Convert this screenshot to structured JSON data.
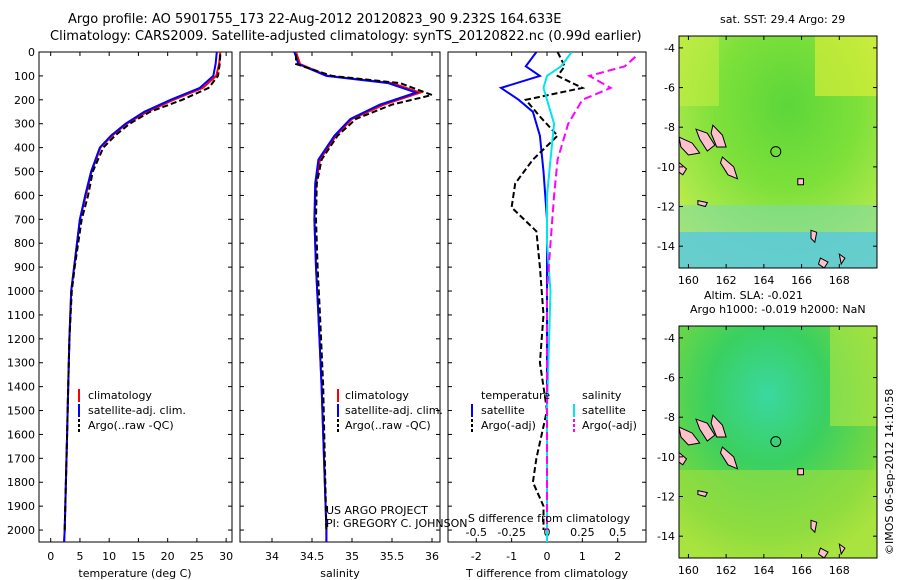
{
  "title_line1": "Argo profile: AO 5901755_173 22-Aug-2012 20120823_90 9.232S 164.633E",
  "title_line2": "Climatology: CARS2009. Satellite-adjusted climatology: synTS_20120822.nc (0.99d earlier)",
  "credit_line1": "US ARGO PROJECT",
  "credit_line2": "PI: GREGORY C. JOHNSON",
  "timestamp": "©IMOS 06-Sep-2012 14:10:58",
  "colors": {
    "climatology": "#ff0000",
    "satellite": "#0000ff",
    "argo": "#000000",
    "sal_satellite": "#00e5ee",
    "sal_argo": "#ff00ff",
    "land": "#ffc0cb"
  },
  "chart_data": [
    {
      "type": "line",
      "xlabel": "temperature (deg C)",
      "xlim": [
        -2,
        31
      ],
      "ylim": [
        2050,
        0
      ],
      "xticks": [
        "0",
        "5",
        "10",
        "15",
        "20",
        "25",
        "30"
      ],
      "xtick_values": [
        0,
        5,
        10,
        15,
        20,
        25,
        30
      ],
      "yticks": [
        "0",
        "100",
        "200",
        "300",
        "400",
        "500",
        "600",
        "700",
        "800",
        "900",
        "1000",
        "1100",
        "1200",
        "1300",
        "1400",
        "1500",
        "1600",
        "1700",
        "1800",
        "1900",
        "2000"
      ],
      "ytick_values": [
        0,
        100,
        200,
        300,
        400,
        500,
        600,
        700,
        800,
        900,
        1000,
        1100,
        1200,
        1300,
        1400,
        1500,
        1600,
        1700,
        1800,
        1900,
        2000
      ],
      "legend_position": "lower-left",
      "series": [
        {
          "name": "climatology",
          "color": "#ff0000",
          "dash": "",
          "x": [
            29.0,
            28.8,
            28.3,
            26.0,
            21.0,
            16.5,
            13.0,
            10.5,
            8.5,
            7.0,
            6.0,
            5.0,
            4.5,
            4.0,
            3.5,
            3.2,
            3.0,
            2.8,
            2.6,
            2.4,
            2.3
          ],
          "y": [
            0,
            50,
            100,
            150,
            200,
            250,
            300,
            350,
            400,
            500,
            600,
            700,
            800,
            900,
            1000,
            1200,
            1400,
            1600,
            1800,
            2000,
            2050
          ]
        },
        {
          "name": "satellite-adj. clim.",
          "color": "#0000ff",
          "dash": "",
          "x": [
            28.4,
            28.2,
            27.8,
            25.5,
            20.5,
            16.0,
            12.8,
            10.3,
            8.4,
            6.9,
            5.9,
            5.0,
            4.5,
            4.0,
            3.5,
            3.2,
            3.0,
            2.8,
            2.6,
            2.4,
            2.3
          ],
          "y": [
            0,
            50,
            100,
            150,
            200,
            250,
            300,
            350,
            400,
            500,
            600,
            700,
            800,
            900,
            1000,
            1200,
            1400,
            1600,
            1800,
            2000,
            2050
          ]
        },
        {
          "name": "Argo(..raw -QC)",
          "color": "#000000",
          "dash": "6,3",
          "x": [
            29.0,
            28.9,
            28.6,
            27.0,
            22.5,
            17.0,
            13.5,
            11.0,
            9.0,
            7.2,
            6.4,
            5.3,
            4.7,
            4.1,
            3.6,
            3.2,
            3.0,
            2.8,
            2.6,
            2.4
          ],
          "y": [
            10,
            50,
            100,
            150,
            200,
            250,
            300,
            350,
            400,
            500,
            600,
            700,
            800,
            900,
            1000,
            1200,
            1400,
            1600,
            1800,
            2000
          ]
        }
      ]
    },
    {
      "type": "line",
      "xlabel": "salinity",
      "xlim": [
        33.6,
        36.1
      ],
      "ylim": [
        2050,
        0
      ],
      "xticks": [
        "34",
        "34.5",
        "35",
        "35.5",
        "36"
      ],
      "xtick_values": [
        34,
        34.5,
        35,
        35.5,
        36
      ],
      "legend_position": "lower-left",
      "series": [
        {
          "name": "climatology",
          "color": "#ff0000",
          "dash": "",
          "x": [
            34.3,
            34.35,
            34.7,
            35.5,
            35.85,
            35.4,
            35.0,
            34.8,
            34.6,
            34.55,
            34.53,
            34.55,
            34.58,
            34.62,
            34.65,
            34.68,
            34.68
          ],
          "y": [
            0,
            50,
            100,
            130,
            170,
            220,
            280,
            350,
            450,
            550,
            700,
            900,
            1100,
            1400,
            1700,
            2000,
            2050
          ]
        },
        {
          "name": "satellite-adj. clim.",
          "color": "#0000ff",
          "dash": "",
          "x": [
            34.28,
            34.33,
            34.68,
            35.45,
            35.8,
            35.35,
            34.98,
            34.78,
            34.58,
            34.54,
            34.53,
            34.55,
            34.58,
            34.62,
            34.65,
            34.68,
            34.68
          ],
          "y": [
            0,
            50,
            100,
            130,
            170,
            220,
            280,
            350,
            450,
            550,
            700,
            900,
            1100,
            1400,
            1700,
            2000,
            2050
          ]
        },
        {
          "name": "Argo(..raw -QC)",
          "color": "#000000",
          "dash": "6,3",
          "x": [
            34.3,
            34.3,
            34.75,
            35.6,
            36.0,
            35.5,
            35.05,
            34.82,
            34.62,
            34.56,
            34.55,
            34.57,
            34.6,
            34.64,
            34.66,
            34.68
          ],
          "y": [
            10,
            50,
            100,
            130,
            180,
            220,
            280,
            350,
            450,
            550,
            700,
            900,
            1100,
            1400,
            1700,
            2000
          ]
        }
      ]
    },
    {
      "type": "line",
      "xlabel": "T difference from climatology",
      "top_xlabel": "S difference from climatology",
      "xlim": [
        -2.8,
        2.8
      ],
      "ylim": [
        2050,
        0
      ],
      "xticks": [
        "-2",
        "-1",
        "0",
        "1",
        "2"
      ],
      "xtick_values": [
        -2,
        -1,
        0,
        1,
        2
      ],
      "top_xticks": [
        "-0.5",
        "-0.25",
        "0",
        "0.25",
        "0.5"
      ],
      "top_xtick_values": [
        -2,
        -1,
        0,
        1,
        2
      ],
      "legend_temperature_heading": "temperature",
      "legend_salinity_heading": "salinity",
      "series": [
        {
          "name": "satellite",
          "group": "temperature",
          "color": "#0000ff",
          "dash": "",
          "x": [
            -0.3,
            -0.6,
            -0.2,
            -1.3,
            -0.8,
            -0.4,
            -0.2,
            -0.1,
            0.0,
            0.0,
            0.0,
            0.0
          ],
          "y": [
            0,
            60,
            100,
            150,
            200,
            250,
            350,
            500,
            700,
            1000,
            1500,
            2050
          ]
        },
        {
          "name": "Argo(-adj)",
          "group": "temperature",
          "color": "#000000",
          "dash": "6,3",
          "x": [
            0.3,
            0.5,
            0.3,
            1.0,
            -0.6,
            -0.2,
            0.3,
            -0.4,
            -0.9,
            -1.0,
            -0.3,
            -0.2,
            -0.1,
            -0.2,
            0.0,
            -0.3,
            -0.4,
            -0.1,
            -0.1
          ],
          "y": [
            0,
            60,
            100,
            150,
            200,
            270,
            350,
            450,
            550,
            650,
            750,
            900,
            1100,
            1300,
            1500,
            1700,
            1800,
            1900,
            2000
          ]
        },
        {
          "name": "satellite",
          "group": "salinity",
          "color": "#00e5ee",
          "dash": "",
          "x": [
            0.7,
            0.4,
            0.0,
            -0.1,
            0.0,
            0.2,
            0.1,
            0.0,
            0.0,
            0.1,
            0.0,
            0.0
          ],
          "y": [
            0,
            60,
            100,
            150,
            200,
            300,
            450,
            600,
            800,
            1000,
            1500,
            2050
          ]
        },
        {
          "name": "Argo(-adj)",
          "group": "salinity",
          "color": "#ff00ff",
          "dash": "8,4",
          "x": [
            2.5,
            2.2,
            1.2,
            1.8,
            1.0,
            0.6,
            0.3,
            0.2,
            0.1,
            0.0,
            0.0,
            0.0
          ],
          "y": [
            20,
            60,
            100,
            150,
            200,
            300,
            450,
            600,
            800,
            1000,
            1500,
            2000
          ]
        }
      ]
    },
    {
      "type": "heatmap",
      "title": "sat. SST: 29.4  Argo: 29",
      "xticks": [
        "160",
        "162",
        "164",
        "166",
        "168"
      ],
      "xtick_values": [
        160,
        162,
        164,
        166,
        168
      ],
      "yticks": [
        "-4",
        "-6",
        "-8",
        "-10",
        "-12",
        "-14"
      ],
      "ytick_values": [
        -4,
        -6,
        -8,
        -10,
        -12,
        -14
      ],
      "xlim": [
        159.5,
        170.0
      ],
      "ylim": [
        -15.1,
        -3.4
      ],
      "marker": {
        "lon": 164.633,
        "lat": -9.232
      }
    },
    {
      "type": "heatmap",
      "title_line1": "Altim. SLA: -0.021",
      "title_line2": "Argo h1000: -0.019  h2000: NaN",
      "xticks": [
        "160",
        "162",
        "164",
        "166",
        "168"
      ],
      "xtick_values": [
        160,
        162,
        164,
        166,
        168
      ],
      "yticks": [
        "-4",
        "-6",
        "-8",
        "-10",
        "-12",
        "-14"
      ],
      "ytick_values": [
        -4,
        -6,
        -8,
        -10,
        -12,
        -14
      ],
      "xlim": [
        159.5,
        170.0
      ],
      "ylim": [
        -15.1,
        -3.4
      ],
      "marker": {
        "lon": 164.633,
        "lat": -9.232
      }
    }
  ]
}
